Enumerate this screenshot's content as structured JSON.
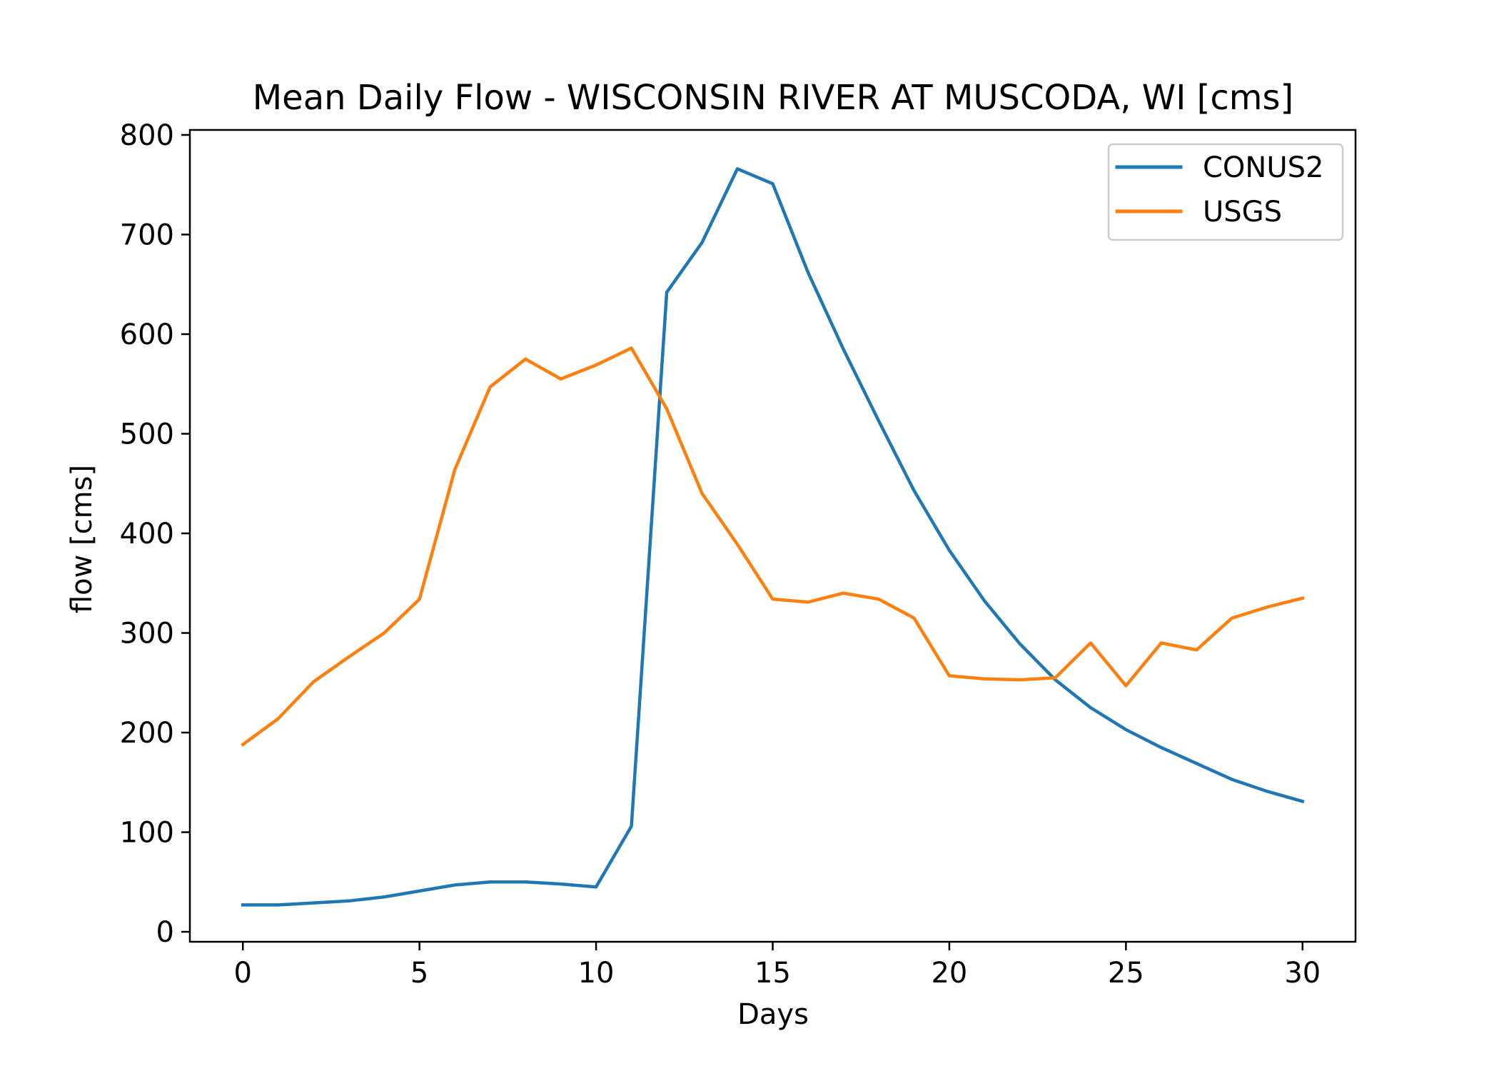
{
  "chart_data": {
    "type": "line",
    "title": "Mean Daily Flow - WISCONSIN RIVER AT MUSCODA, WI [cms]",
    "xlabel": "Days",
    "ylabel": "flow [cms]",
    "xlim": [
      -1.5,
      31.5
    ],
    "ylim": [
      -10,
      805
    ],
    "xticks": [
      0,
      5,
      10,
      15,
      20,
      25,
      30
    ],
    "xtick_labels": [
      "0",
      "5",
      "10",
      "15",
      "20",
      "25",
      "30"
    ],
    "yticks": [
      0,
      100,
      200,
      300,
      400,
      500,
      600,
      700,
      800
    ],
    "ytick_labels": [
      "0",
      "100",
      "200",
      "300",
      "400",
      "500",
      "600",
      "700",
      "800"
    ],
    "grid": false,
    "legend_position": "top-right",
    "x": [
      0,
      1,
      2,
      3,
      4,
      5,
      6,
      7,
      8,
      9,
      10,
      11,
      12,
      13,
      14,
      15,
      16,
      17,
      18,
      19,
      20,
      21,
      22,
      23,
      24,
      25,
      26,
      27,
      28,
      29,
      30
    ],
    "series": [
      {
        "name": "CONUS2",
        "color": "#1f77b4",
        "values": [
          27,
          27,
          29,
          31,
          35,
          41,
          47,
          50,
          50,
          48,
          45,
          106,
          642,
          692,
          766,
          751,
          662,
          585,
          513,
          443,
          383,
          332,
          289,
          253,
          225,
          203,
          185,
          169,
          153,
          141,
          131
        ]
      },
      {
        "name": "USGS",
        "color": "#ff7f0e",
        "values": [
          188,
          214,
          251,
          276,
          300,
          334,
          464,
          547,
          575,
          555,
          569,
          586,
          525,
          440,
          389,
          334,
          331,
          340,
          334,
          315,
          257,
          254,
          253,
          255,
          290,
          247,
          290,
          283,
          315,
          326,
          335
        ]
      }
    ]
  }
}
